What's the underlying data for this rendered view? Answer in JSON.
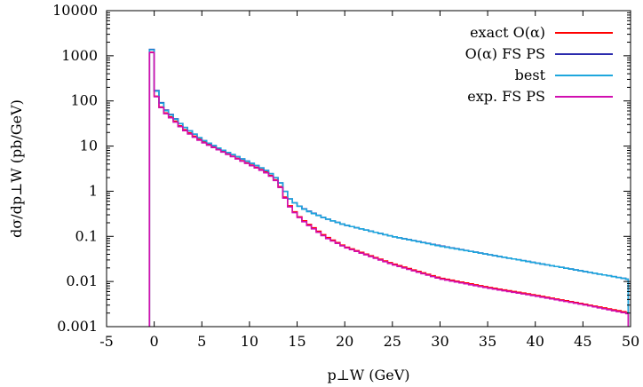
{
  "chart_data": {
    "type": "line",
    "title": "",
    "xlabel": "p⊥W (GeV)",
    "ylabel": "dσ/dp⊥W (pb/GeV)",
    "xlim": [
      -5,
      50
    ],
    "ylim": [
      0.001,
      10000
    ],
    "yscale": "log",
    "grid": false,
    "legend_position": "top-right",
    "x_ticks": [
      -5,
      0,
      5,
      10,
      15,
      20,
      25,
      30,
      35,
      40,
      45,
      50
    ],
    "x_tick_labels": [
      "-5",
      "0",
      "5",
      "10",
      "15",
      "20",
      "25",
      "30",
      "35",
      "40",
      "45",
      "50"
    ],
    "y_ticks": [
      0.001,
      0.01,
      0.1,
      1,
      10,
      100,
      1000,
      10000
    ],
    "y_tick_labels": [
      "0.001",
      "0.01",
      "0.1",
      "1",
      "10",
      "100",
      "1000",
      "10000"
    ],
    "series": [
      {
        "name": "exact O(α)",
        "color": "#ff0000",
        "points": [
          [
            -0.5,
            8000
          ],
          [
            0,
            180
          ],
          [
            0.5,
            90
          ],
          [
            1,
            60
          ],
          [
            2,
            40
          ],
          [
            3,
            25
          ],
          [
            4,
            18
          ],
          [
            5,
            13
          ],
          [
            7,
            8
          ],
          [
            9,
            5
          ],
          [
            11,
            3.2
          ],
          [
            12,
            2.5
          ],
          [
            13,
            1.6
          ],
          [
            13.5,
            1
          ],
          [
            14,
            0.55
          ],
          [
            15,
            0.3
          ],
          [
            16,
            0.2
          ],
          [
            18,
            0.1
          ],
          [
            20,
            0.06
          ],
          [
            25,
            0.025
          ],
          [
            30,
            0.012
          ],
          [
            35,
            0.0075
          ],
          [
            40,
            0.005
          ],
          [
            45,
            0.0032
          ],
          [
            50,
            0.002
          ]
        ]
      },
      {
        "name": "O(α) FS PS",
        "color": "#2b2bad",
        "points": [
          [
            -0.5,
            8000
          ],
          [
            0,
            240
          ],
          [
            0.5,
            120
          ],
          [
            1,
            70
          ],
          [
            2,
            45
          ],
          [
            3,
            28
          ],
          [
            4,
            20
          ],
          [
            5,
            14
          ],
          [
            7,
            8.5
          ],
          [
            9,
            5.5
          ],
          [
            11,
            3.5
          ],
          [
            12,
            2.7
          ],
          [
            13,
            1.8
          ],
          [
            13.5,
            1.3
          ],
          [
            14,
            0.75
          ],
          [
            15,
            0.5
          ],
          [
            16,
            0.38
          ],
          [
            18,
            0.25
          ],
          [
            20,
            0.18
          ],
          [
            25,
            0.1
          ],
          [
            30,
            0.062
          ],
          [
            35,
            0.04
          ],
          [
            40,
            0.026
          ],
          [
            45,
            0.017
          ],
          [
            50,
            0.011
          ]
        ]
      },
      {
        "name": "best",
        "color": "#1ea7dd",
        "points": [
          [
            -0.5,
            8000
          ],
          [
            0,
            230
          ],
          [
            0.5,
            118
          ],
          [
            1,
            68
          ],
          [
            2,
            44
          ],
          [
            3,
            28
          ],
          [
            4,
            20
          ],
          [
            5,
            14
          ],
          [
            7,
            8.5
          ],
          [
            9,
            5.5
          ],
          [
            11,
            3.5
          ],
          [
            12,
            2.7
          ],
          [
            13,
            1.8
          ],
          [
            13.5,
            1.3
          ],
          [
            14,
            0.75
          ],
          [
            15,
            0.5
          ],
          [
            16,
            0.37
          ],
          [
            18,
            0.25
          ],
          [
            20,
            0.18
          ],
          [
            25,
            0.1
          ],
          [
            30,
            0.061
          ],
          [
            35,
            0.04
          ],
          [
            40,
            0.026
          ],
          [
            45,
            0.017
          ],
          [
            50,
            0.011
          ]
        ]
      },
      {
        "name": "exp. FS PS",
        "color": "#d10fb0",
        "points": [
          [
            -0.5,
            8000
          ],
          [
            0,
            175
          ],
          [
            0.5,
            88
          ],
          [
            1,
            58
          ],
          [
            2,
            38
          ],
          [
            3,
            24
          ],
          [
            4,
            17
          ],
          [
            5,
            12.5
          ],
          [
            7,
            7.8
          ],
          [
            9,
            4.9
          ],
          [
            11,
            3.1
          ],
          [
            12,
            2.4
          ],
          [
            13,
            1.55
          ],
          [
            13.5,
            0.95
          ],
          [
            14,
            0.52
          ],
          [
            15,
            0.29
          ],
          [
            16,
            0.19
          ],
          [
            18,
            0.095
          ],
          [
            20,
            0.058
          ],
          [
            25,
            0.024
          ],
          [
            30,
            0.0115
          ],
          [
            35,
            0.0072
          ],
          [
            40,
            0.0048
          ],
          [
            45,
            0.0031
          ],
          [
            50,
            0.0019
          ]
        ]
      }
    ]
  }
}
